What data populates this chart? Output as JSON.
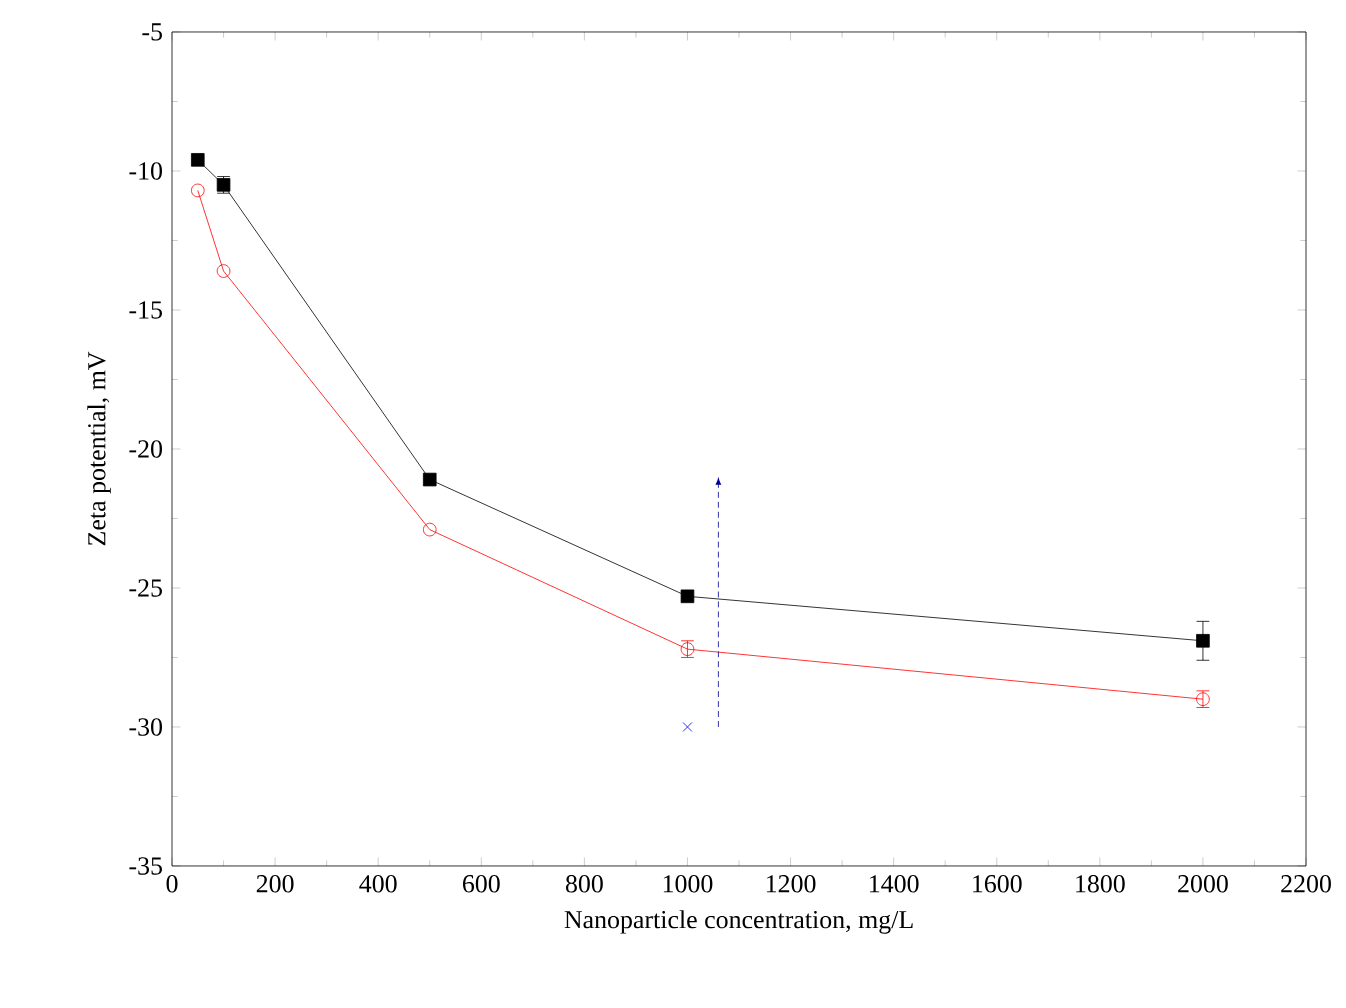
{
  "chart_data": {
    "type": "line",
    "xlabel": "Nanoparticle concentration, mg/L",
    "ylabel": "Zeta potential, mV",
    "xlim": [
      0,
      2200
    ],
    "ylim": [
      -35,
      -5
    ],
    "xticks": [
      0,
      200,
      400,
      600,
      800,
      1000,
      1200,
      1400,
      1600,
      1800,
      2000,
      2200
    ],
    "yticks": [
      -35,
      -30,
      -25,
      -20,
      -15,
      -10,
      -5
    ],
    "grid": false,
    "line_style": "solid",
    "series": [
      {
        "color": "#000000",
        "marker": "square",
        "x": [
          50,
          100,
          500,
          1000,
          2000
        ],
        "values": [
          -9.6,
          -10.5,
          -21.1,
          -25.3,
          -26.9
        ],
        "errors": [
          null,
          0.3,
          null,
          null,
          0.7
        ]
      },
      {
        "color": "#ff0000",
        "marker": "circle",
        "x": [
          50,
          100,
          500,
          1000,
          2000
        ],
        "values": [
          -10.7,
          -13.6,
          -22.9,
          -27.2,
          -29.0
        ],
        "errors": [
          null,
          null,
          null,
          0.3,
          0.3
        ]
      },
      {
        "color": "#0000ff",
        "marker": "cross",
        "x": [
          1000
        ],
        "values": [
          -30
        ]
      }
    ]
  }
}
